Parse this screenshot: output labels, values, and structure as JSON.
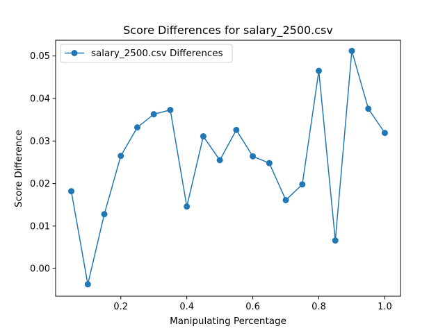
{
  "chart_data": {
    "type": "line",
    "title": "Score Differences for salary_2500.csv",
    "xlabel": "Manipulating Percentage",
    "ylabel": "Score Difference",
    "xlim": [
      0.0025,
      1.0475
    ],
    "ylim": [
      -0.0065,
      0.0537
    ],
    "x_ticks": [
      0.2,
      0.4,
      0.6,
      0.8,
      1.0
    ],
    "x_tick_labels": [
      "0.2",
      "0.4",
      "0.6",
      "0.8",
      "1.0"
    ],
    "y_ticks": [
      0.0,
      0.01,
      0.02,
      0.03,
      0.04,
      0.05
    ],
    "y_tick_labels": [
      "0.00",
      "0.01",
      "0.02",
      "0.03",
      "0.04",
      "0.05"
    ],
    "grid": false,
    "legend_position": "upper-left",
    "series": [
      {
        "name": "salary_2500.csv Differences",
        "color": "#1f77b4",
        "marker": "circle",
        "x": [
          0.05,
          0.1,
          0.15,
          0.2,
          0.25,
          0.3,
          0.35,
          0.4,
          0.45,
          0.5,
          0.55,
          0.6,
          0.65,
          0.7,
          0.75,
          0.8,
          0.85,
          0.9,
          0.95,
          1.0
        ],
        "y": [
          0.0182,
          -0.0037,
          0.0128,
          0.0265,
          0.0332,
          0.0363,
          0.0373,
          0.0146,
          0.0311,
          0.0255,
          0.0326,
          0.0264,
          0.0248,
          0.0161,
          0.0198,
          0.0465,
          0.0066,
          0.0512,
          0.0376,
          0.0319
        ]
      }
    ]
  }
}
